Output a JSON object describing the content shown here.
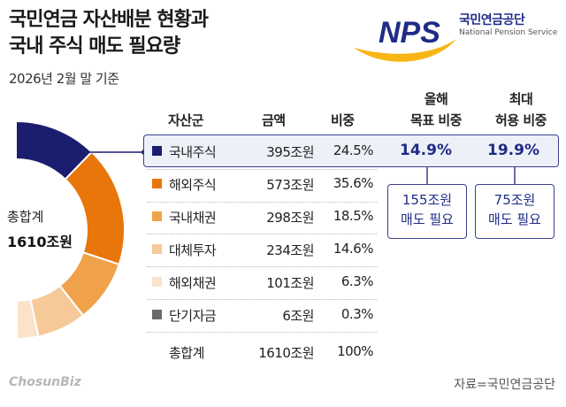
{
  "header": {
    "title_line1": "국민연금 자산배분 현황과",
    "title_line2": "국내 주식 매도 필요량",
    "subtitle": "2026년 2월 말 기준"
  },
  "logo": {
    "mark": "NPS",
    "name_kor": "국민연금공단",
    "name_eng": "National Pension Service"
  },
  "total": {
    "label": "총합계",
    "value": "1610조원"
  },
  "table": {
    "headers": {
      "asset": "자산군",
      "amount": "금액",
      "share": "비중",
      "target_line1": "올해",
      "target_line2": "목표 비중",
      "max_line1": "최대",
      "max_line2": "허용 비중"
    },
    "rows": [
      {
        "name": "국내주식",
        "amount": "395조원",
        "share": "24.5%",
        "color": "#1b1e6e"
      },
      {
        "name": "해외주식",
        "amount": "573조원",
        "share": "35.6%",
        "color": "#e8760a"
      },
      {
        "name": "국내채권",
        "amount": "298조원",
        "share": "18.5%",
        "color": "#f0a24b"
      },
      {
        "name": "대체투자",
        "amount": "234조원",
        "share": "14.6%",
        "color": "#f6c998"
      },
      {
        "name": "해외채권",
        "amount": "101조원",
        "share": "6.3%",
        "color": "#fbe3cb"
      },
      {
        "name": "단기자금",
        "amount": "6조원",
        "share": "0.3%",
        "color": "#6b6b6b"
      }
    ],
    "total_row": {
      "name": "총합계",
      "amount": "1610조원",
      "share": "100%"
    },
    "domestic_target": "14.9%",
    "domestic_max": "19.9%"
  },
  "callouts": {
    "target": {
      "line1": "155조원",
      "line2": "매도 필요"
    },
    "max": {
      "line1": "75조원",
      "line2": "매도 필요"
    }
  },
  "chart_data": {
    "type": "pie",
    "categories": [
      "국내주식",
      "해외주식",
      "국내채권",
      "대체투자",
      "해외채권",
      "단기자금"
    ],
    "values": [
      24.5,
      35.6,
      18.5,
      14.6,
      6.3,
      0.3
    ],
    "amounts": [
      395,
      573,
      298,
      234,
      101,
      6
    ],
    "colors": [
      "#1b1e6e",
      "#e8760a",
      "#f0a24b",
      "#f6c998",
      "#fbe3cb",
      "#6b6b6b"
    ]
  },
  "footer": {
    "credit": "ChosunBiz",
    "source": "자료=국민연금공단"
  },
  "colors": {
    "accent": "#1f2c86",
    "line": "#3a3f8f",
    "logo_yellow": "#f7b614"
  }
}
